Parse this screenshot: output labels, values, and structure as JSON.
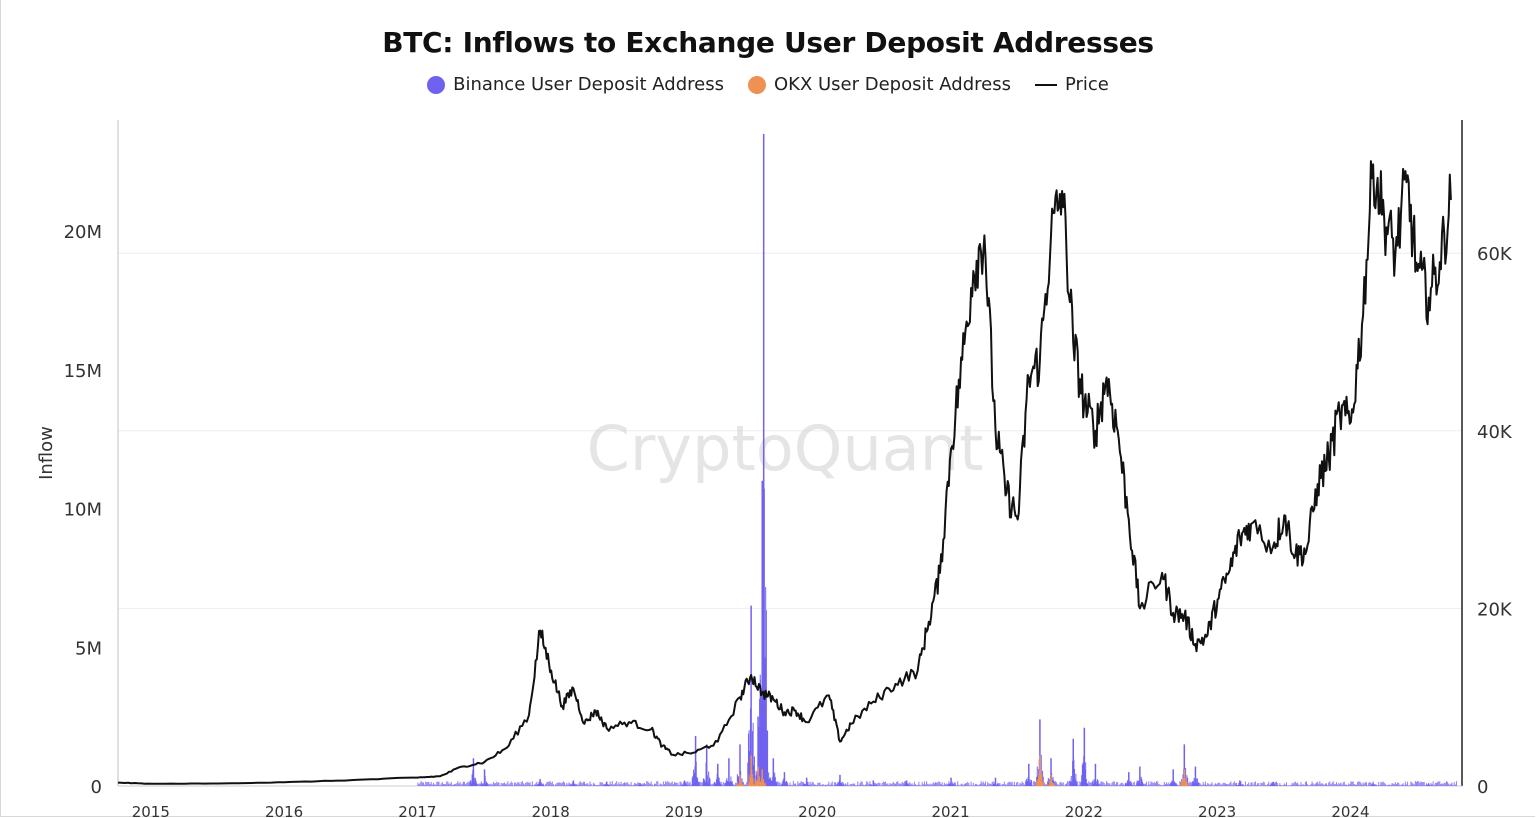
{
  "chart_data": {
    "type": "line",
    "title": "BTC: Inflows to Exchange User Deposit Addresses",
    "watermark": "CryptoQuant",
    "ylabel": "Inflow",
    "ylim": [
      0,
      24000000
    ],
    "y2lim": [
      0,
      75000
    ],
    "yticks": [
      "0",
      "5M",
      "10M",
      "15M",
      "20M"
    ],
    "yticks_values": [
      0,
      5000000,
      10000000,
      15000000,
      20000000
    ],
    "y2ticks": [
      "0",
      "20K",
      "40K",
      "60K"
    ],
    "y2ticks_values": [
      0,
      20000,
      40000,
      60000
    ],
    "xticks": [
      "2015",
      "2016",
      "2017",
      "2018",
      "2019",
      "2020",
      "2021",
      "2022",
      "2023",
      "2024"
    ],
    "xlim": [
      "2014-10",
      "2024-11"
    ],
    "grid": true,
    "legend_position": "top-center",
    "colors": {
      "binance": "#7062f0",
      "okx": "#ee9152",
      "price": "#111111"
    },
    "series": [
      {
        "name": "Binance User Deposit Address",
        "kind": "bar",
        "axis": "left",
        "points": [
          [
            "2017-06",
            1000000
          ],
          [
            "2017-07",
            600000
          ],
          [
            "2017-12",
            250000
          ],
          [
            "2018-03",
            200000
          ],
          [
            "2018-06",
            150000
          ],
          [
            "2018-09",
            100000
          ],
          [
            "2019-01",
            200000
          ],
          [
            "2019-02",
            1800000
          ],
          [
            "2019-03",
            1500000
          ],
          [
            "2019-04",
            800000
          ],
          [
            "2019-05",
            1000000
          ],
          [
            "2019-06",
            1500000
          ],
          [
            "2019-07",
            6500000
          ],
          [
            "2019-07-20",
            2500000
          ],
          [
            "2019-08-01",
            11000000
          ],
          [
            "2019-08-05",
            23500000
          ],
          [
            "2019-08-15",
            2000000
          ],
          [
            "2019-09",
            1000000
          ],
          [
            "2019-10",
            500000
          ],
          [
            "2019-12",
            300000
          ],
          [
            "2020-03",
            400000
          ],
          [
            "2020-06",
            200000
          ],
          [
            "2020-09",
            200000
          ],
          [
            "2021-01",
            300000
          ],
          [
            "2021-05",
            300000
          ],
          [
            "2021-08",
            800000
          ],
          [
            "2021-09",
            2400000
          ],
          [
            "2021-10",
            1000000
          ],
          [
            "2021-12",
            1700000
          ],
          [
            "2022-01",
            2100000
          ],
          [
            "2022-02",
            800000
          ],
          [
            "2022-05",
            500000
          ],
          [
            "2022-06",
            700000
          ],
          [
            "2022-09",
            600000
          ],
          [
            "2022-10",
            1500000
          ],
          [
            "2022-11",
            700000
          ],
          [
            "2023-03",
            200000
          ],
          [
            "2023-06",
            150000
          ],
          [
            "2024-03",
            100000
          ],
          [
            "2024-08",
            80000
          ]
        ]
      },
      {
        "name": "OKX User Deposit Address",
        "kind": "bar",
        "axis": "left",
        "points": [
          [
            "2019-06",
            400000
          ],
          [
            "2019-07",
            1100000
          ],
          [
            "2019-07-20",
            700000
          ],
          [
            "2019-08",
            600000
          ],
          [
            "2021-09",
            1100000
          ],
          [
            "2021-10",
            400000
          ],
          [
            "2022-10",
            600000
          ]
        ]
      },
      {
        "name": "Price",
        "kind": "line",
        "axis": "right",
        "points": [
          [
            "2014-10",
            380
          ],
          [
            "2015-01",
            250
          ],
          [
            "2015-07",
            280
          ],
          [
            "2016-01",
            420
          ],
          [
            "2016-07",
            660
          ],
          [
            "2017-01",
            950
          ],
          [
            "2017-03",
            1100
          ],
          [
            "2017-05",
            2200
          ],
          [
            "2017-07",
            2700
          ],
          [
            "2017-09",
            4300
          ],
          [
            "2017-11",
            8000
          ],
          [
            "2017-12",
            17500
          ],
          [
            "2018-01",
            13000
          ],
          [
            "2018-02",
            9000
          ],
          [
            "2018-03",
            11000
          ],
          [
            "2018-04",
            7000
          ],
          [
            "2018-05",
            8500
          ],
          [
            "2018-06",
            6500
          ],
          [
            "2018-08",
            7200
          ],
          [
            "2018-10",
            6400
          ],
          [
            "2018-11",
            4500
          ],
          [
            "2018-12",
            3500
          ],
          [
            "2019-02",
            3800
          ],
          [
            "2019-04",
            5000
          ],
          [
            "2019-06",
            10000
          ],
          [
            "2019-07",
            12500
          ],
          [
            "2019-08",
            10500
          ],
          [
            "2019-09",
            9800
          ],
          [
            "2019-10",
            8300
          ],
          [
            "2019-11",
            8500
          ],
          [
            "2019-12",
            7200
          ],
          [
            "2020-02",
            10200
          ],
          [
            "2020-03",
            5000
          ],
          [
            "2020-04",
            7000
          ],
          [
            "2020-06",
            9500
          ],
          [
            "2020-08",
            11500
          ],
          [
            "2020-10",
            13000
          ],
          [
            "2020-11",
            18500
          ],
          [
            "2020-12",
            24000
          ],
          [
            "2021-01",
            38000
          ],
          [
            "2021-02",
            48000
          ],
          [
            "2021-03",
            58000
          ],
          [
            "2021-04",
            62000
          ],
          [
            "2021-05",
            40000
          ],
          [
            "2021-06",
            33000
          ],
          [
            "2021-07",
            30000
          ],
          [
            "2021-08",
            46000
          ],
          [
            "2021-09",
            48000
          ],
          [
            "2021-10",
            62000
          ],
          [
            "2021-11",
            67000
          ],
          [
            "2021-12",
            50000
          ],
          [
            "2022-01",
            43000
          ],
          [
            "2022-02",
            40000
          ],
          [
            "2022-03",
            46000
          ],
          [
            "2022-04",
            40000
          ],
          [
            "2022-05",
            30000
          ],
          [
            "2022-06",
            20000
          ],
          [
            "2022-08",
            24000
          ],
          [
            "2022-09",
            19500
          ],
          [
            "2022-10",
            19200
          ],
          [
            "2022-11",
            16000
          ],
          [
            "2022-12",
            16800
          ],
          [
            "2023-01",
            21000
          ],
          [
            "2023-02",
            24000
          ],
          [
            "2023-03",
            28000
          ],
          [
            "2023-04",
            29500
          ],
          [
            "2023-06",
            27000
          ],
          [
            "2023-07",
            30500
          ],
          [
            "2023-08",
            26000
          ],
          [
            "2023-09",
            26500
          ],
          [
            "2023-10",
            34000
          ],
          [
            "2023-11",
            37000
          ],
          [
            "2023-12",
            42000
          ],
          [
            "2024-01",
            41000
          ],
          [
            "2024-02",
            52000
          ],
          [
            "2024-03",
            70000
          ],
          [
            "2024-04",
            64000
          ],
          [
            "2024-05",
            60000
          ],
          [
            "2024-06",
            68000
          ],
          [
            "2024-07",
            58000
          ],
          [
            "2024-08",
            55000
          ],
          [
            "2024-09",
            59000
          ],
          [
            "2024-10",
            66000
          ]
        ]
      }
    ]
  }
}
